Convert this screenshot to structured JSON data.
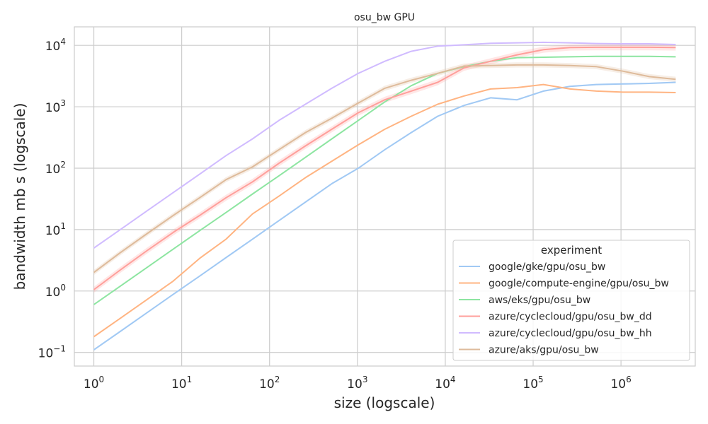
{
  "chart_data": {
    "type": "line",
    "title": "osu_bw GPU",
    "xlabel": "size (logscale)",
    "ylabel": "bandwidth mb s (logscale)",
    "xscale": "log",
    "yscale": "log",
    "xlim": [
      0.6,
      7000000
    ],
    "ylim": [
      0.06,
      20000
    ],
    "grid": true,
    "legend": {
      "title": "experiment",
      "placement": "lower-right"
    },
    "x_ticks": [
      {
        "base": "10",
        "exp": "0",
        "value": 1
      },
      {
        "base": "10",
        "exp": "1",
        "value": 10
      },
      {
        "base": "10",
        "exp": "2",
        "value": 100
      },
      {
        "base": "10",
        "exp": "3",
        "value": 1000
      },
      {
        "base": "10",
        "exp": "4",
        "value": 10000
      },
      {
        "base": "10",
        "exp": "5",
        "value": 100000
      },
      {
        "base": "10",
        "exp": "6",
        "value": 1000000
      }
    ],
    "y_ticks": [
      {
        "base": "10",
        "exp": "−1",
        "value": 0.1
      },
      {
        "base": "10",
        "exp": "0",
        "value": 1
      },
      {
        "base": "10",
        "exp": "1",
        "value": 10
      },
      {
        "base": "10",
        "exp": "2",
        "value": 100
      },
      {
        "base": "10",
        "exp": "3",
        "value": 1000
      },
      {
        "base": "10",
        "exp": "4",
        "value": 10000
      }
    ],
    "x": [
      1,
      2,
      4,
      8,
      16,
      32,
      64,
      128,
      256,
      512,
      1024,
      2048,
      4096,
      8192,
      16384,
      32768,
      65536,
      131072,
      262144,
      524288,
      1048576,
      2097152,
      4194304
    ],
    "series": [
      {
        "name": "google/gke/gpu/osu_bw",
        "color": "#a1c9f4",
        "values": [
          0.11,
          0.22,
          0.44,
          0.88,
          1.75,
          3.5,
          7.0,
          14,
          28,
          56,
          100,
          200,
          380,
          700,
          1050,
          1400,
          1300,
          1800,
          2150,
          2300,
          2350,
          2400,
          2500
        ],
        "band": 0.03
      },
      {
        "name": "google/compute-engine/gpu/osu_bw",
        "color": "#ffb482",
        "values": [
          0.18,
          0.36,
          0.72,
          1.45,
          3.4,
          7.0,
          18,
          35,
          70,
          130,
          240,
          430,
          700,
          1100,
          1500,
          1950,
          2050,
          2300,
          1950,
          1800,
          1730,
          1730,
          1700
        ],
        "band": 0.02
      },
      {
        "name": "aws/eks/gpu/osu_bw",
        "color": "#8de5a1",
        "values": [
          0.6,
          1.2,
          2.4,
          4.8,
          9.6,
          19,
          38,
          75,
          150,
          300,
          600,
          1200,
          2200,
          3500,
          4500,
          5500,
          6300,
          6400,
          6500,
          6600,
          6600,
          6600,
          6500
        ],
        "band": 0.02
      },
      {
        "name": "azure/cyclecloud/gpu/osu_bw_dd",
        "color": "#ff9f9b",
        "values": [
          1.05,
          2.2,
          4.5,
          9.0,
          17,
          33,
          60,
          120,
          230,
          430,
          800,
          1300,
          1800,
          2500,
          4300,
          5500,
          7000,
          8500,
          9200,
          9300,
          9300,
          9300,
          9200
        ],
        "band": 0.12
      },
      {
        "name": "azure/cyclecloud/gpu/osu_bw_hh",
        "color": "#d0bbff",
        "values": [
          5,
          10,
          20,
          40,
          80,
          160,
          300,
          600,
          1100,
          2000,
          3500,
          5500,
          8000,
          9700,
          10200,
          10800,
          11000,
          11200,
          11000,
          10700,
          10600,
          10600,
          10300
        ],
        "band": 0.02
      },
      {
        "name": "azure/aks/gpu/osu_bw",
        "color": "#debb9b",
        "values": [
          2.0,
          4.2,
          8.5,
          17,
          33,
          65,
          105,
          200,
          380,
          650,
          1150,
          2000,
          2700,
          3500,
          4600,
          4700,
          4800,
          4800,
          4700,
          4500,
          3800,
          3100,
          2800
        ],
        "band": 0.1
      }
    ]
  }
}
